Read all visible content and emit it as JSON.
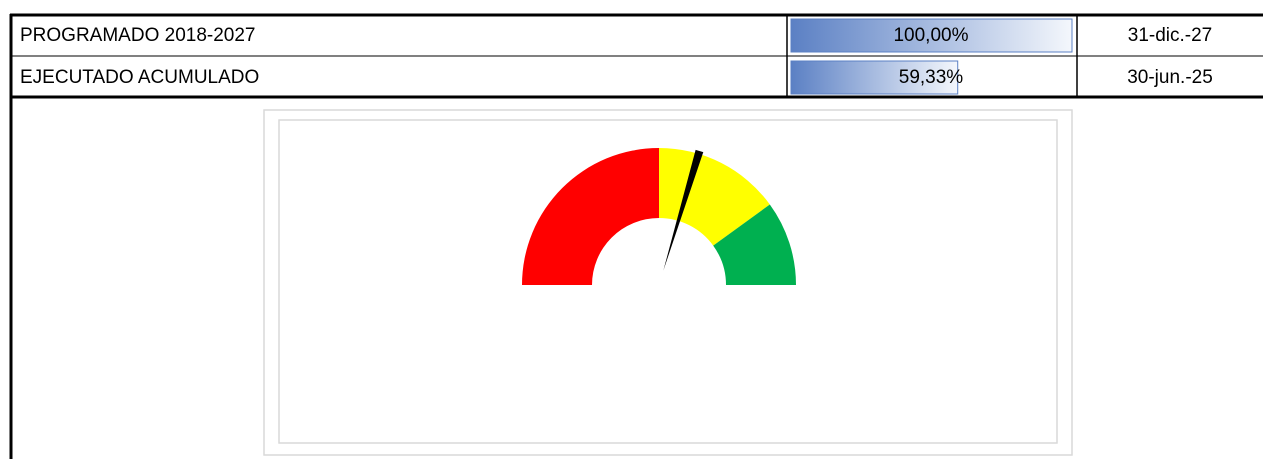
{
  "table": {
    "rows": [
      {
        "label": "PROGRAMADO 2018-2027",
        "value": 100,
        "value_label": "100,00%",
        "date": "31-dic.-27"
      },
      {
        "label": "EJECUTADO ACUMULADO",
        "value": 59.33,
        "value_label": "59,33%",
        "date": "30-jun.-25"
      }
    ],
    "bar_color": "#5b80c4"
  },
  "gauge": {
    "segments": [
      50,
      30,
      20
    ],
    "colors": [
      "#ff0000",
      "#ffff00",
      "#00b050"
    ],
    "needle_color": "#000000"
  }
}
